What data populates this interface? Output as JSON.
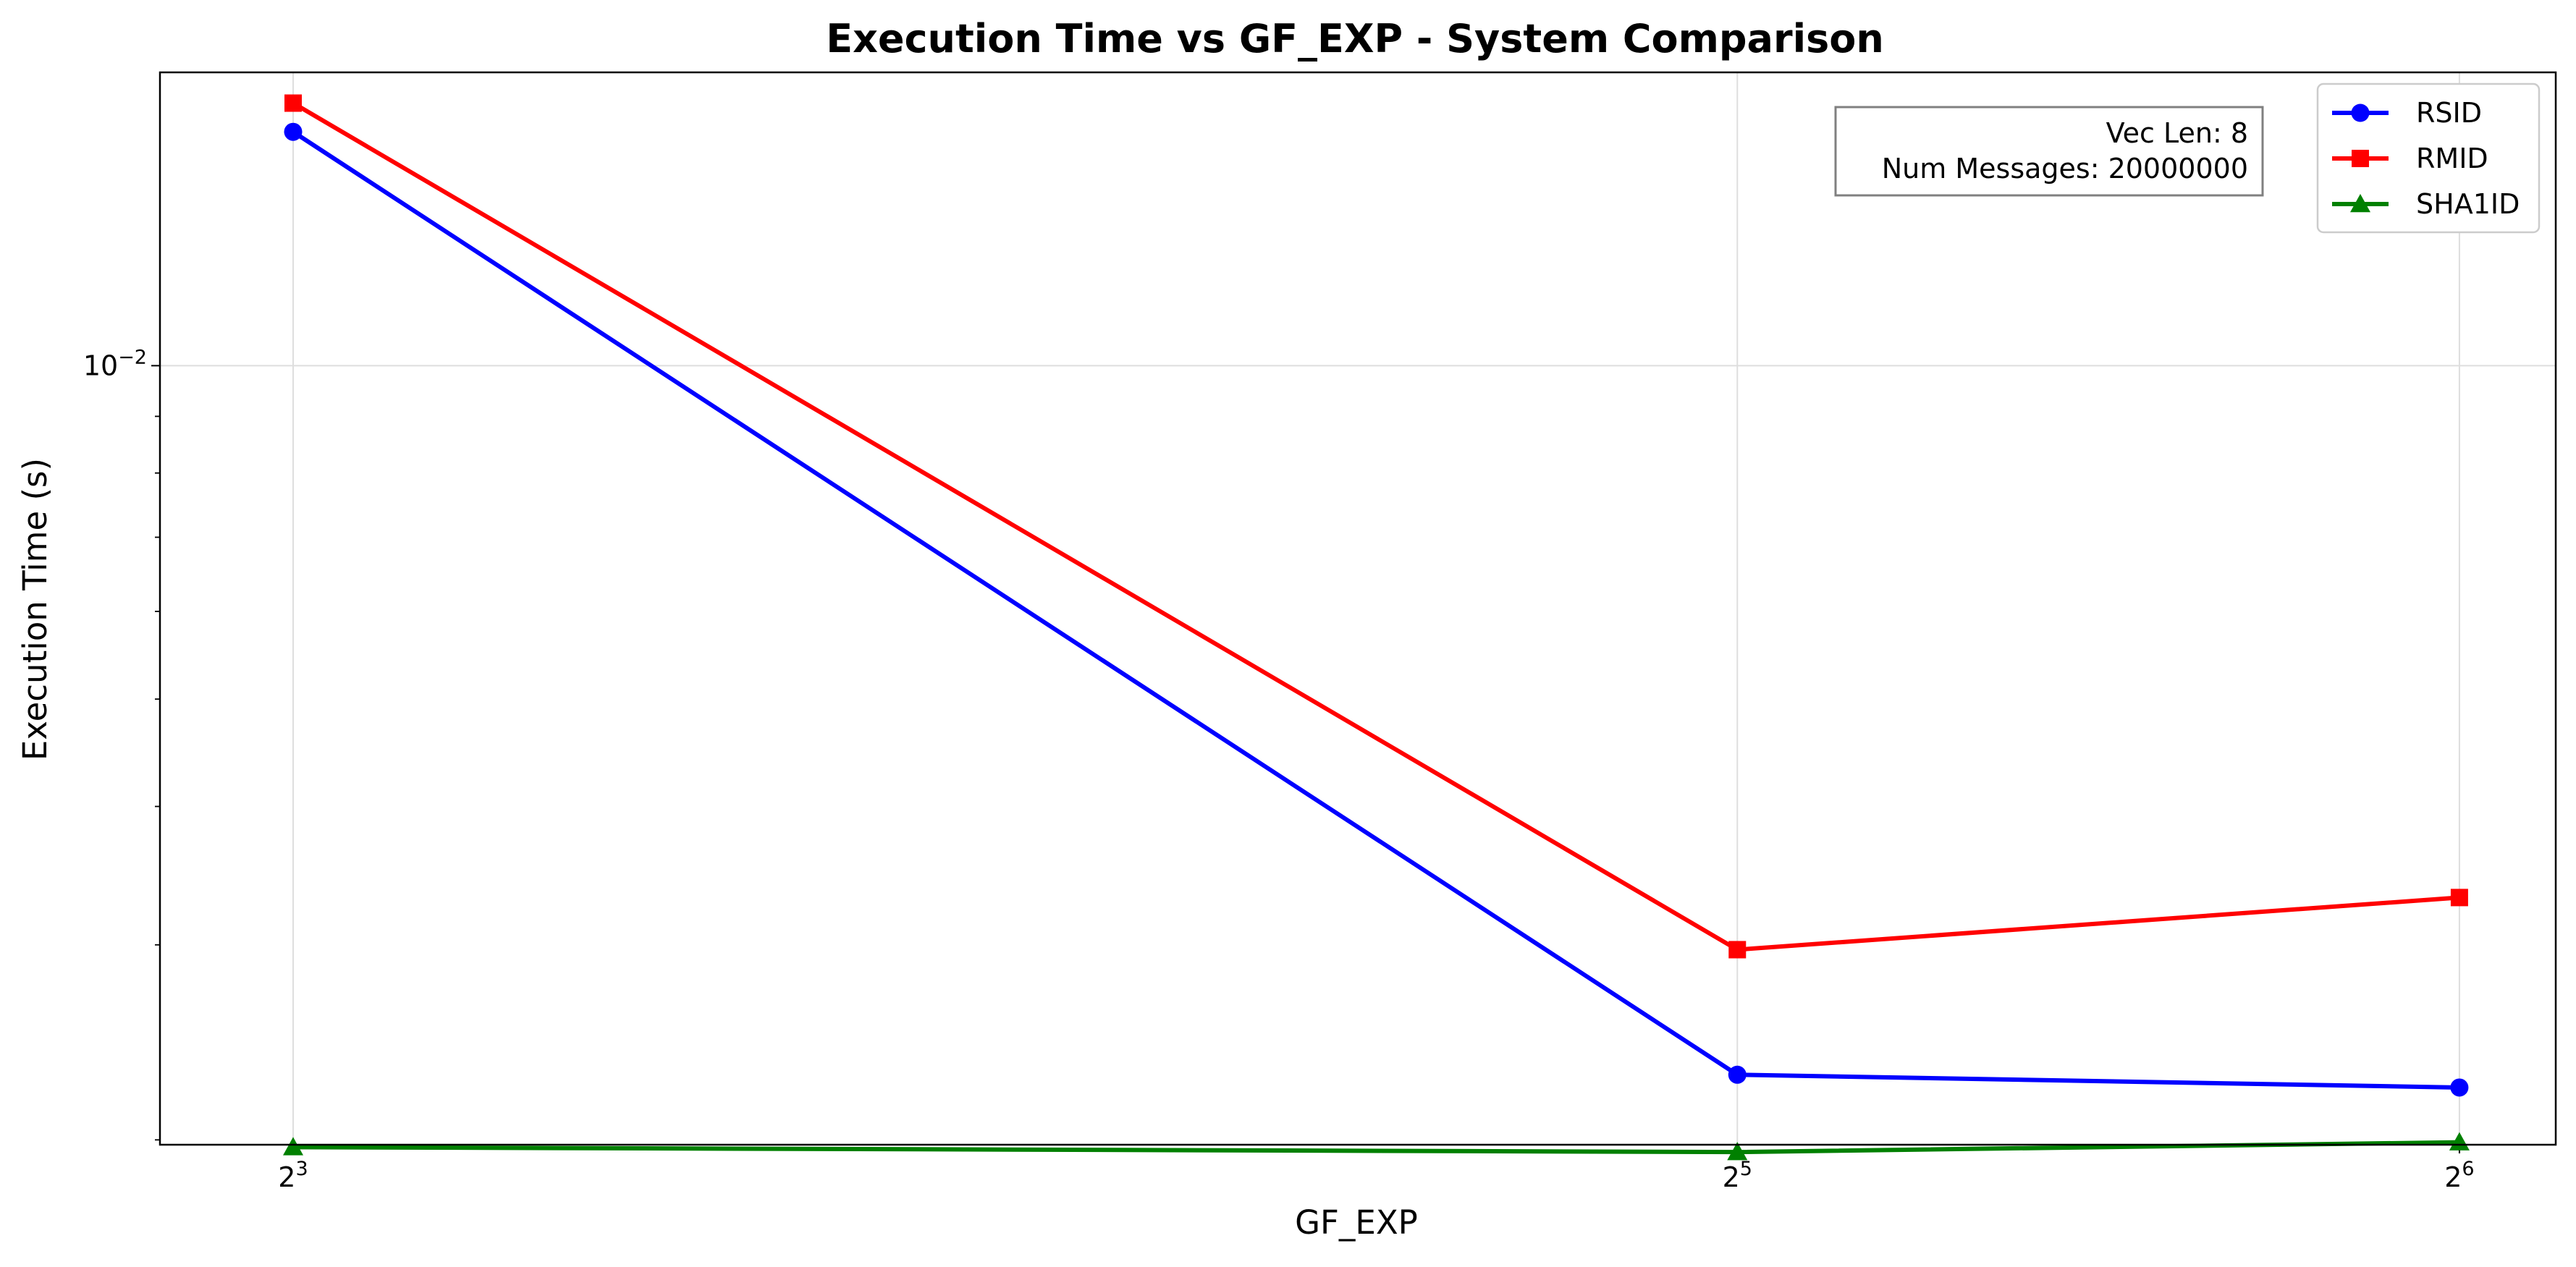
{
  "chart_data": {
    "type": "line",
    "title": "Execution Time vs GF_EXP - System Comparison",
    "xlabel": "GF_EXP",
    "ylabel": "Execution Time (s)",
    "x_scale": "log2",
    "y_scale": "log",
    "x": [
      8,
      32,
      64
    ],
    "x_tick_labels": [
      {
        "base": "2",
        "exp": "3"
      },
      {
        "base": "2",
        "exp": "5"
      },
      {
        "base": "2",
        "exp": "6"
      }
    ],
    "y_tick_labels": [
      {
        "base": "10",
        "exp": "−2",
        "value": 0.01
      }
    ],
    "xlim": [
      7.04,
      70.2
    ],
    "ylim": [
      0.00198,
      0.0184
    ],
    "grid": true,
    "legend_position": "top-right",
    "series": [
      {
        "name": "RSID",
        "color": "#0000ff",
        "marker": "circle",
        "values": [
          0.01626,
          0.00229,
          0.00223
        ]
      },
      {
        "name": "RMID",
        "color": "#ff0000",
        "marker": "square",
        "values": [
          0.01726,
          0.00297,
          0.00331
        ]
      },
      {
        "name": "SHA1ID",
        "color": "#008000",
        "marker": "triangle",
        "values": [
          0.00197,
          0.00195,
          0.00199
        ]
      }
    ],
    "annotation": {
      "lines": [
        "Vec Len: 8",
        "Num Messages: 20000000"
      ]
    }
  }
}
